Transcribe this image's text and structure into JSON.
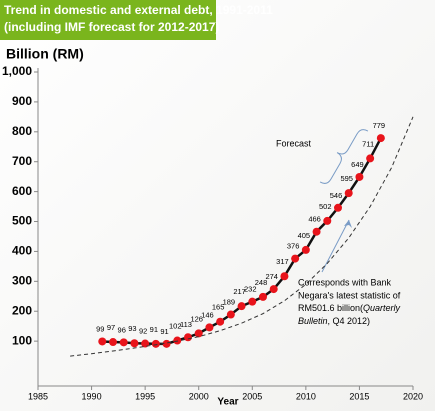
{
  "chart_data": {
    "type": "line",
    "title": [
      "Trend in domestic and external debt, 1991-2011",
      "(including IMF forecast for 2012-2017)"
    ],
    "y_label": "Billion (RM)",
    "x_label": "Year",
    "x": [
      1991,
      1992,
      1993,
      1994,
      1995,
      1996,
      1997,
      1998,
      1999,
      2000,
      2001,
      2002,
      2003,
      2004,
      2005,
      2006,
      2007,
      2008,
      2009,
      2010,
      2011,
      2012,
      2013,
      2014,
      2015,
      2016,
      2017
    ],
    "series": [
      {
        "color": "#111111",
        "marker_color": "#e8141b",
        "values": [
          99,
          97,
          96,
          93,
          92,
          91,
          91,
          102,
          113,
          126,
          146,
          165,
          189,
          217,
          232,
          248,
          274,
          317,
          376,
          405,
          466,
          502,
          546,
          595,
          649,
          711,
          779
        ]
      },
      {
        "color": "#333333",
        "style": "dashed",
        "x": [
          1988,
          1990,
          1992,
          1994,
          1996,
          1998,
          2000,
          2002,
          2004,
          2006,
          2008,
          2010,
          2012,
          2014,
          2016,
          2018,
          2020
        ],
        "values": [
          50,
          58,
          67,
          77,
          88,
          100,
          115,
          135,
          160,
          192,
          235,
          290,
          360,
          445,
          550,
          680,
          850
        ]
      }
    ],
    "xlim": [
      1985,
      2020
    ],
    "xticks": [
      1985,
      1990,
      1995,
      2000,
      2005,
      2010,
      2015,
      2020
    ],
    "ylim": [
      -50,
      1000
    ],
    "yticks": [
      100,
      200,
      300,
      400,
      500,
      600,
      700,
      800,
      900,
      {
        "value": 1000,
        "label": "1,000"
      }
    ],
    "forecast_label": "Forecast",
    "note": {
      "lines": [
        "Corresponds with Bank",
        "Negara's latest statistic of"
      ],
      "line3": "RM501.6 billion(",
      "line3_italic": "Quarterly",
      "line4_italic": "Bulletin",
      "line4": ", Q4 2012)"
    }
  }
}
